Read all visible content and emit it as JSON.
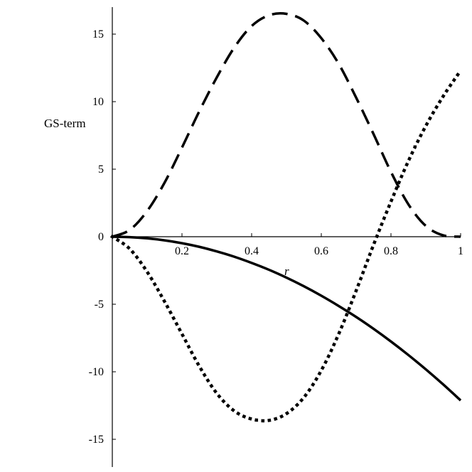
{
  "chart_data": {
    "type": "line",
    "title": "",
    "xlabel": "r",
    "ylabel": "GS-term",
    "xlim": [
      0,
      1
    ],
    "ylim": [
      -17,
      17
    ],
    "xticks": [
      "0.2",
      "0.4",
      "0.6",
      "0.8",
      "1"
    ],
    "yticks": [
      "-15",
      "-10",
      "-5",
      "0",
      "5",
      "10",
      "15"
    ],
    "grid": false,
    "legend": "none",
    "x": [
      0,
      0.05,
      0.1,
      0.15,
      0.2,
      0.25,
      0.3,
      0.35,
      0.4,
      0.45,
      0.5,
      0.55,
      0.6,
      0.65,
      0.7,
      0.75,
      0.8,
      0.85,
      0.9,
      0.95,
      1
    ],
    "series": [
      {
        "style": "solid",
        "color": "#000000",
        "values": [
          0,
          -0.03,
          -0.12,
          -0.27,
          -0.48,
          -0.75,
          -1.09,
          -1.48,
          -1.94,
          -2.45,
          -3.03,
          -3.67,
          -4.37,
          -5.13,
          -5.94,
          -6.82,
          -7.76,
          -8.76,
          -9.82,
          -10.94,
          -12.12
        ]
      },
      {
        "style": "dashed",
        "color": "#000000",
        "values": [
          0,
          0.5,
          1.9,
          4.0,
          6.6,
          9.3,
          11.8,
          14.0,
          15.6,
          16.4,
          16.5,
          16.0,
          14.7,
          12.8,
          10.3,
          7.6,
          4.8,
          2.4,
          0.8,
          0.1,
          0
        ]
      },
      {
        "style": "dotted",
        "color": "#000000",
        "values": [
          0,
          -0.9,
          -2.6,
          -4.8,
          -7.2,
          -9.6,
          -11.6,
          -12.9,
          -13.5,
          -13.6,
          -13.1,
          -11.9,
          -9.9,
          -7.2,
          -4.0,
          -0.6,
          2.6,
          5.6,
          8.2,
          10.4,
          12.3
        ]
      }
    ]
  }
}
